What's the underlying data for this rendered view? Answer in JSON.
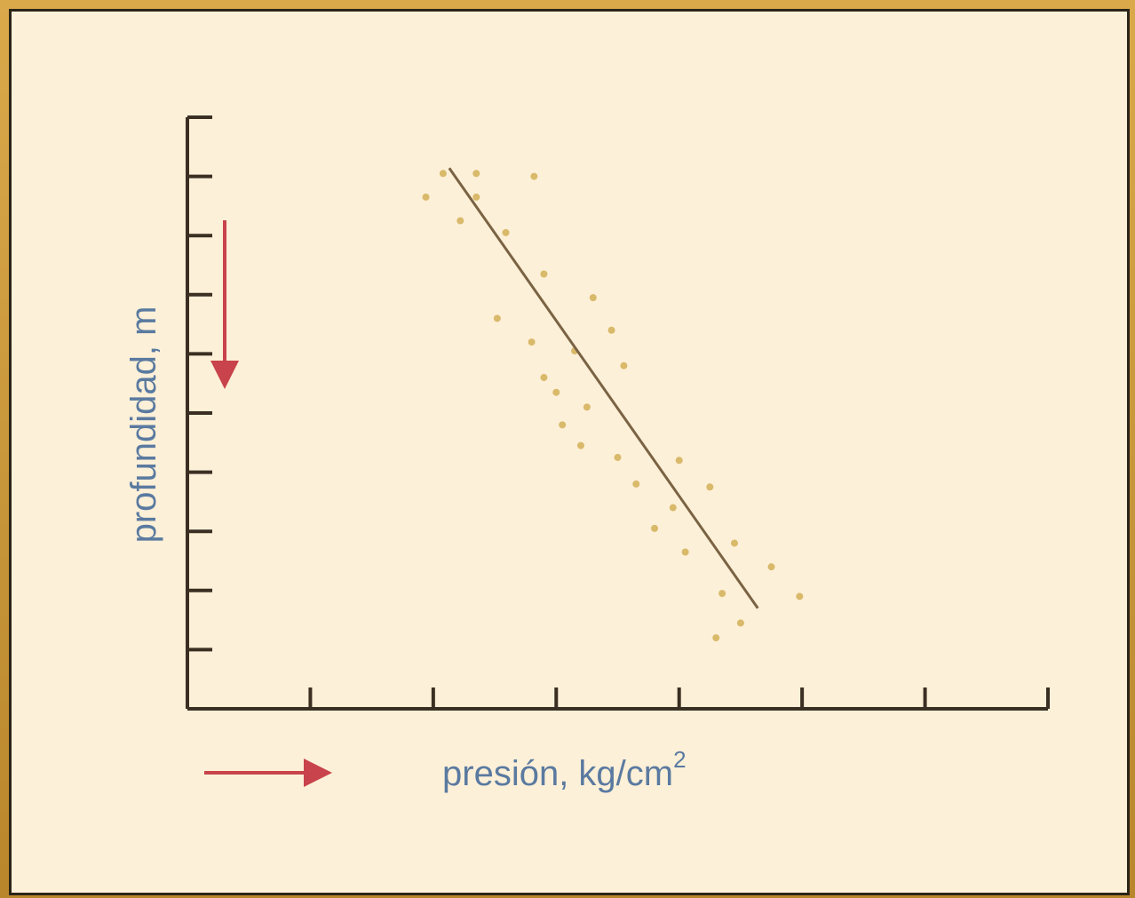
{
  "chart_data": {
    "type": "scatter",
    "xlabel": "presión, kg/cm",
    "xlabel_superscript": "2",
    "ylabel": "profundidad, m",
    "x_ticks": 7,
    "y_ticks": 10,
    "xlim": [
      0,
      7
    ],
    "ylim": [
      0,
      10
    ],
    "y_inverted": true,
    "direction_arrows": [
      "down",
      "right"
    ],
    "points": [
      [
        2.08,
        0.95
      ],
      [
        2.35,
        0.95
      ],
      [
        2.82,
        1.0
      ],
      [
        1.94,
        1.35
      ],
      [
        2.35,
        1.35
      ],
      [
        2.22,
        1.75
      ],
      [
        2.59,
        1.95
      ],
      [
        2.9,
        2.65
      ],
      [
        3.3,
        3.05
      ],
      [
        2.52,
        3.4
      ],
      [
        3.45,
        3.6
      ],
      [
        2.8,
        3.8
      ],
      [
        3.15,
        3.95
      ],
      [
        3.55,
        4.2
      ],
      [
        2.9,
        4.4
      ],
      [
        3.0,
        4.65
      ],
      [
        3.25,
        4.9
      ],
      [
        3.05,
        5.2
      ],
      [
        3.2,
        5.55
      ],
      [
        3.5,
        5.75
      ],
      [
        4.0,
        5.8
      ],
      [
        4.25,
        6.25
      ],
      [
        3.65,
        6.2
      ],
      [
        3.95,
        6.6
      ],
      [
        3.8,
        6.95
      ],
      [
        4.45,
        7.2
      ],
      [
        4.05,
        7.35
      ],
      [
        4.75,
        7.6
      ],
      [
        4.35,
        8.05
      ],
      [
        4.98,
        8.1
      ],
      [
        4.5,
        8.55
      ],
      [
        4.3,
        8.8
      ]
    ],
    "trend_line": {
      "from": [
        2.13,
        0.86
      ],
      "to": [
        4.64,
        8.3
      ]
    },
    "colors": {
      "background": "#fdf0d8",
      "axis": "#3a2f22",
      "points": "#d9b96a",
      "trend_line": "#7a6343",
      "arrows": "#c8434b",
      "labels": "#5a7aa0",
      "frame": "#c89a3c"
    }
  }
}
